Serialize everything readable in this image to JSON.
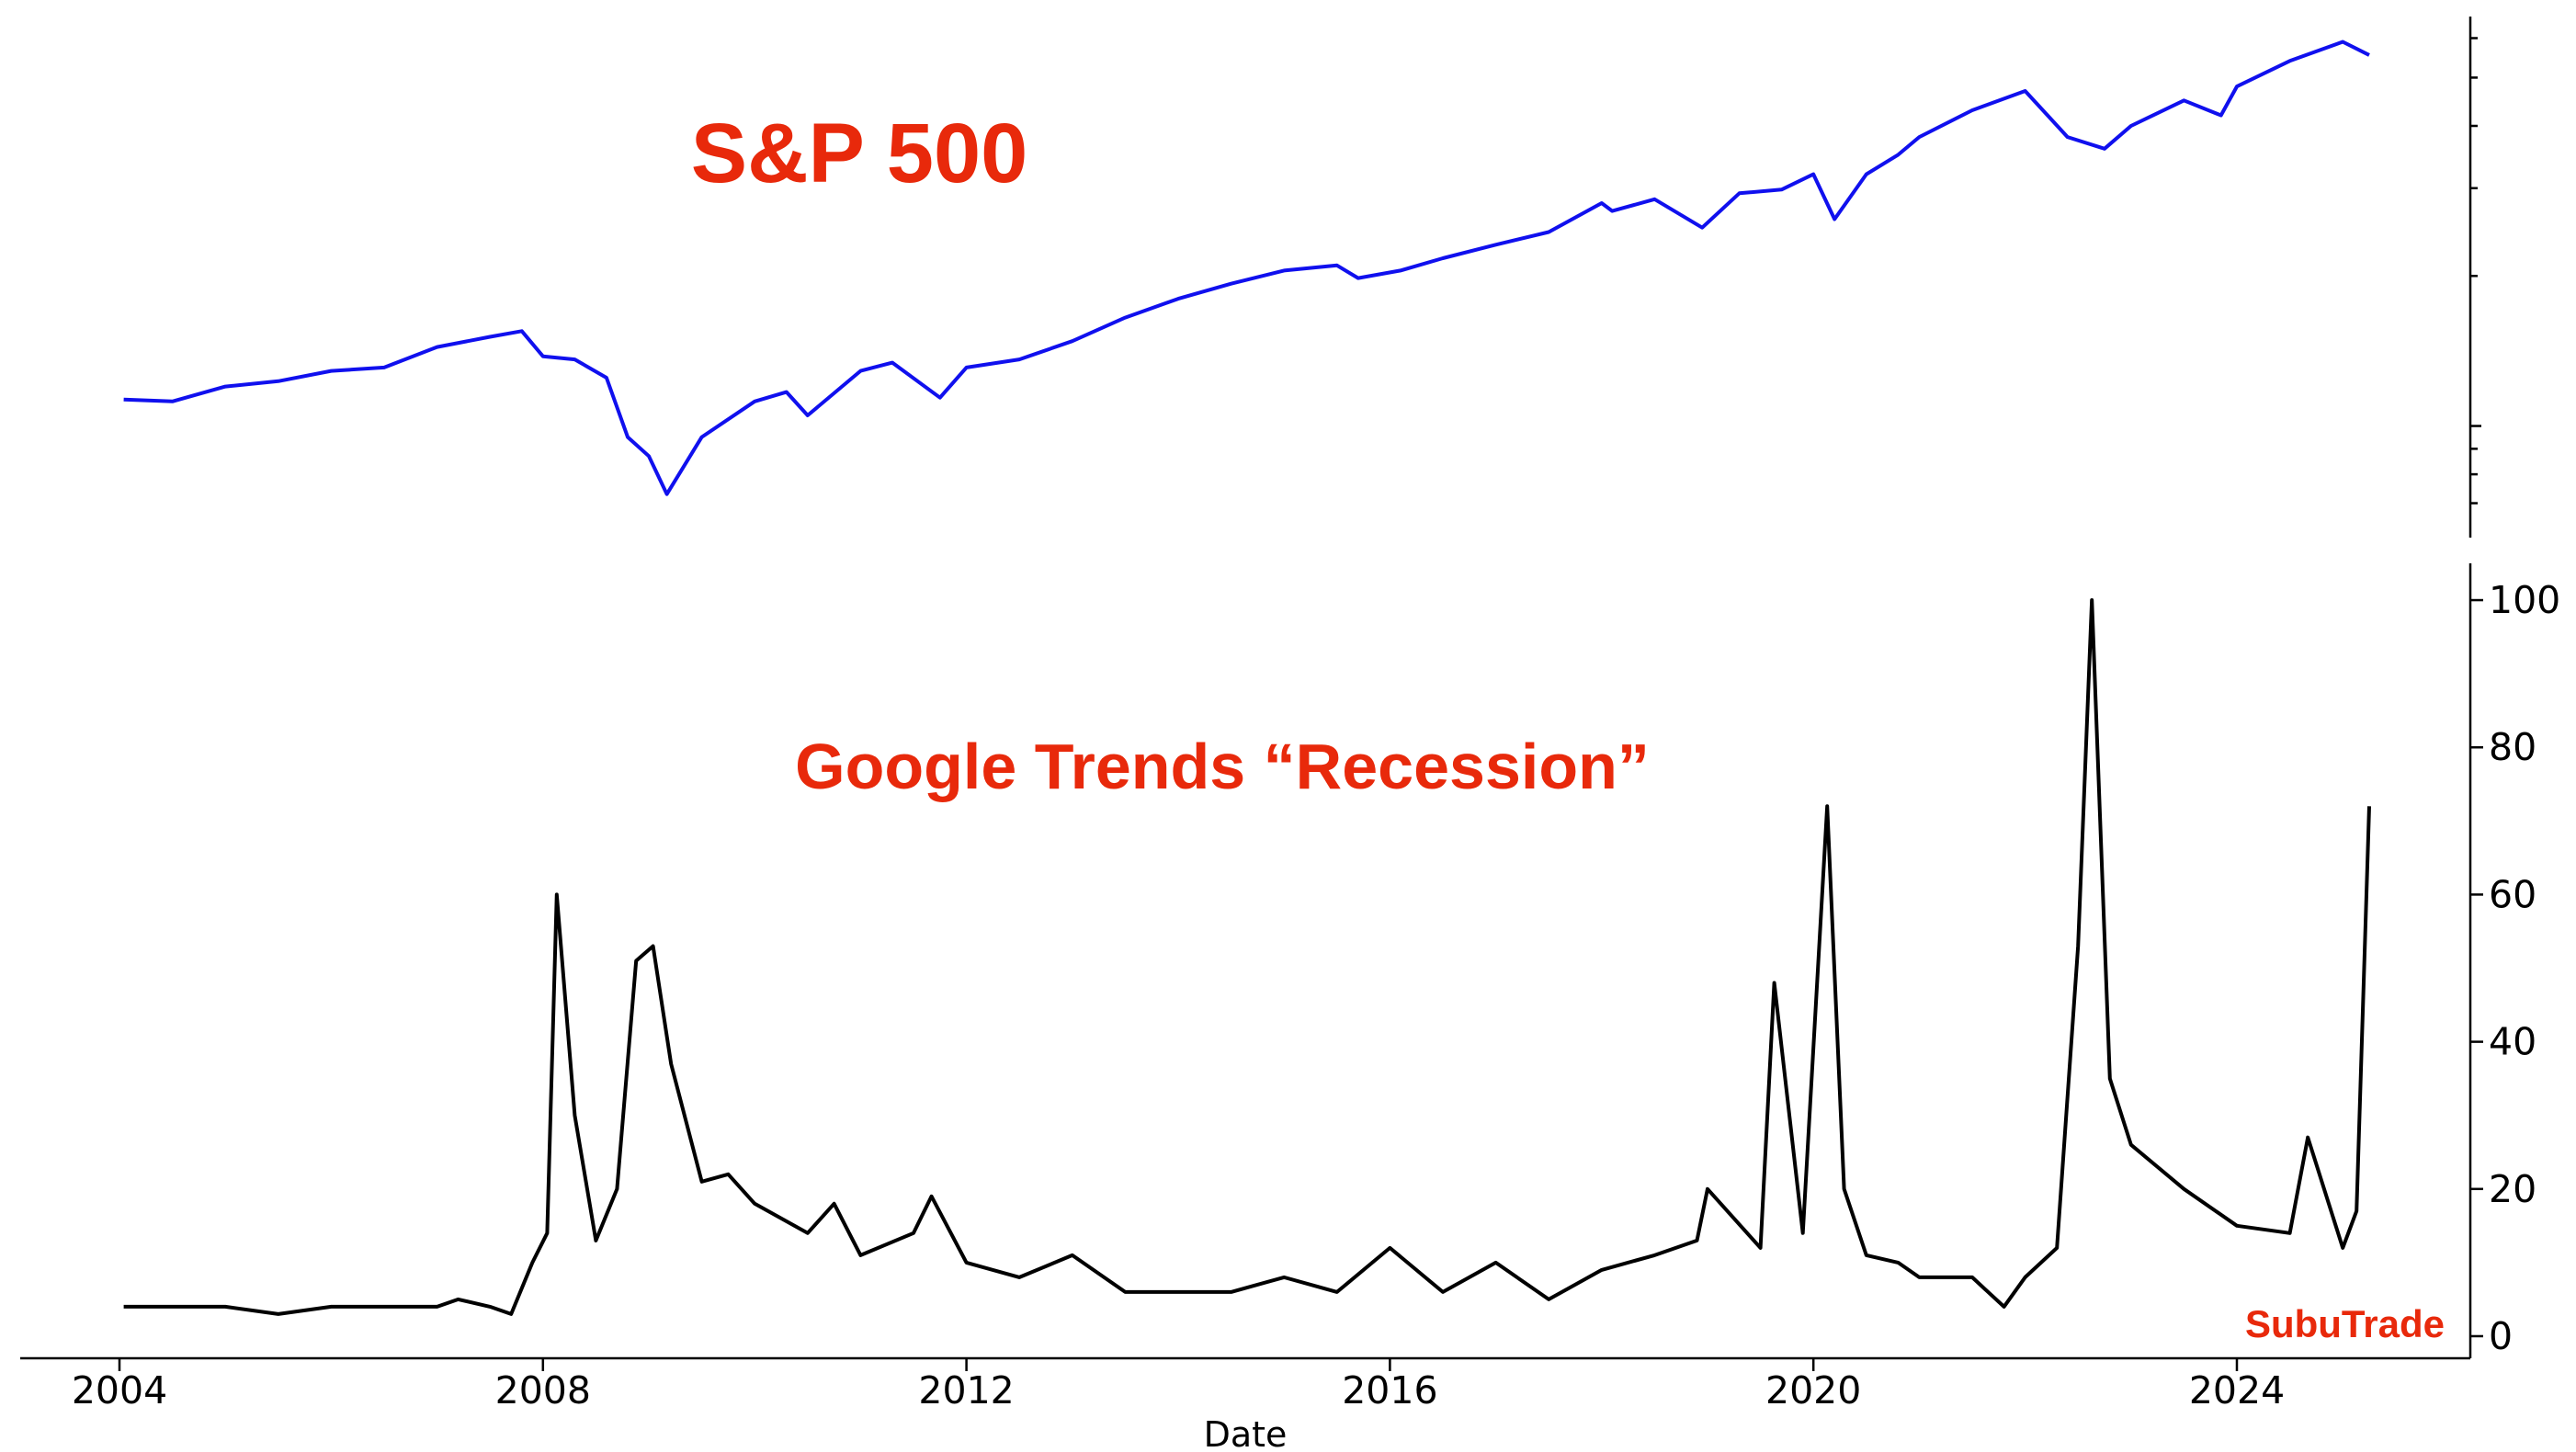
{
  "chart_data": [
    {
      "type": "line",
      "title": "S&P 500",
      "xlabel": "Date",
      "ylabel": "",
      "y_scale": "log",
      "ylim": [
        650,
        6300
      ],
      "tick_labels_visible": false,
      "grid": false,
      "legend": "none",
      "color": "#1010ee",
      "title_color": "#e8290b",
      "series": [
        {
          "x": [
            2004.04,
            2004.5,
            2005.0,
            2005.5,
            2006.0,
            2006.5,
            2007.0,
            2007.5,
            2007.8,
            2008.0,
            2008.3,
            2008.6,
            2008.8,
            2009.0,
            2009.17,
            2009.5,
            2010.0,
            2010.3,
            2010.5,
            2011.0,
            2011.3,
            2011.75,
            2012.0,
            2012.5,
            2013.0,
            2013.5,
            2014.0,
            2014.5,
            2015.0,
            2015.5,
            2015.7,
            2016.1,
            2016.5,
            2017.0,
            2017.5,
            2018.0,
            2018.1,
            2018.5,
            2018.95,
            2019.3,
            2019.7,
            2020.0,
            2020.2,
            2020.5,
            2020.8,
            2021.0,
            2021.5,
            2022.0,
            2022.4,
            2022.75,
            2023.0,
            2023.5,
            2023.85,
            2024.0,
            2024.5,
            2025.0,
            2025.25
          ],
          "y": [
            1130,
            1120,
            1200,
            1230,
            1290,
            1310,
            1440,
            1510,
            1550,
            1380,
            1360,
            1250,
            950,
            870,
            730,
            950,
            1120,
            1170,
            1050,
            1290,
            1340,
            1140,
            1310,
            1360,
            1480,
            1650,
            1800,
            1930,
            2050,
            2100,
            1980,
            2050,
            2170,
            2310,
            2450,
            2800,
            2700,
            2850,
            2500,
            2930,
            2980,
            3200,
            2600,
            3200,
            3500,
            3800,
            4300,
            4700,
            3800,
            3600,
            4000,
            4500,
            4200,
            4800,
            5400,
            5900,
            5550
          ]
        }
      ]
    },
    {
      "type": "line",
      "title": "Google Trends “Recession”",
      "xlabel": "Date",
      "ylabel": "",
      "ylim": [
        -3,
        105
      ],
      "yticks": [
        "0",
        "20",
        "40",
        "60",
        "80",
        "100"
      ],
      "xticks": [
        "2004",
        "2008",
        "2012",
        "2016",
        "2020",
        "2024"
      ],
      "grid": false,
      "legend": "none",
      "color": "#000000",
      "title_color": "#e8290b",
      "series": [
        {
          "x": [
            2004.04,
            2004.5,
            2005.0,
            2005.5,
            2006.0,
            2006.5,
            2007.0,
            2007.2,
            2007.5,
            2007.7,
            2007.9,
            2008.04,
            2008.13,
            2008.3,
            2008.5,
            2008.7,
            2008.88,
            2009.04,
            2009.21,
            2009.5,
            2009.75,
            2010.0,
            2010.5,
            2010.75,
            2011.0,
            2011.5,
            2011.67,
            2012.0,
            2012.5,
            2013.0,
            2013.5,
            2014.0,
            2014.5,
            2015.0,
            2015.5,
            2016.0,
            2016.5,
            2017.0,
            2017.5,
            2018.0,
            2018.5,
            2018.9,
            2019.0,
            2019.5,
            2019.63,
            2019.9,
            2020.13,
            2020.29,
            2020.5,
            2020.8,
            2021.0,
            2021.5,
            2021.8,
            2022.0,
            2022.3,
            2022.5,
            2022.63,
            2022.8,
            2023.0,
            2023.5,
            2024.0,
            2024.5,
            2024.67,
            2025.0,
            2025.13,
            2025.25
          ],
          "y": [
            4,
            4,
            4,
            3,
            4,
            4,
            4,
            5,
            4,
            3,
            10,
            14,
            60,
            30,
            13,
            20,
            51,
            53,
            37,
            21,
            22,
            18,
            14,
            18,
            11,
            14,
            19,
            10,
            8,
            11,
            6,
            6,
            6,
            8,
            6,
            12,
            6,
            10,
            5,
            9,
            11,
            13,
            20,
            12,
            48,
            14,
            72,
            20,
            11,
            10,
            8,
            8,
            4,
            8,
            12,
            53,
            100,
            35,
            26,
            20,
            15,
            14,
            27,
            12,
            17,
            72
          ]
        }
      ]
    }
  ],
  "watermark": "SubuTrade"
}
